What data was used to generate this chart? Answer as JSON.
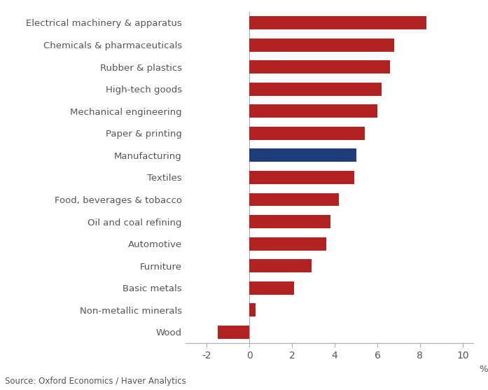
{
  "categories": [
    "Wood",
    "Non-metallic minerals",
    "Basic metals",
    "Furniture",
    "Automotive",
    "Oil and coal refining",
    "Food, beverages & tobacco",
    "Textiles",
    "Manufacturing",
    "Paper & printing",
    "Mechanical engineering",
    "High-tech goods",
    "Rubber & plastics",
    "Chemicals & pharmaceuticals",
    "Electrical machinery & apparatus"
  ],
  "values": [
    -1.5,
    0.3,
    2.1,
    2.9,
    3.6,
    3.8,
    4.2,
    4.9,
    5.0,
    5.4,
    6.0,
    6.2,
    6.6,
    6.8,
    8.3
  ],
  "bar_colors": [
    "#b22222",
    "#b22222",
    "#b22222",
    "#b22222",
    "#b22222",
    "#b22222",
    "#b22222",
    "#b22222",
    "#1f3d7a",
    "#b22222",
    "#b22222",
    "#b22222",
    "#b22222",
    "#b22222",
    "#b22222"
  ],
  "xlim": [
    -3,
    10.5
  ],
  "xticks": [
    -2,
    0,
    2,
    4,
    6,
    8,
    10
  ],
  "xlabel": "%",
  "source_text": "Source: Oxford Economics / Haver Analytics",
  "background_color": "#ffffff",
  "bar_height": 0.6,
  "tick_label_color": "#555555",
  "axis_color": "#aaaaaa",
  "label_fontsize": 9.5,
  "tick_fontsize": 9.5
}
